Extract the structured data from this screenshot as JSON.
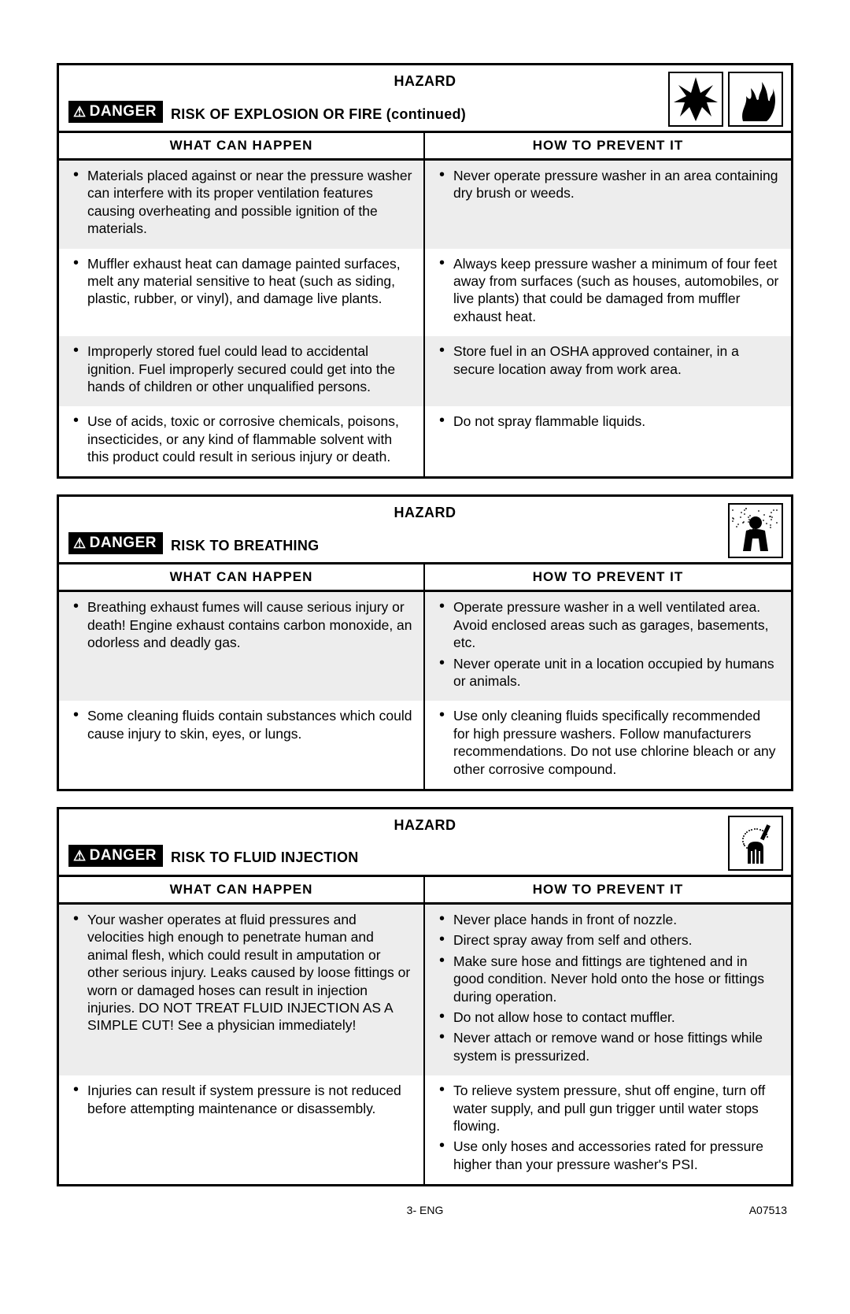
{
  "labels": {
    "hazard": "HAZARD",
    "danger": "DANGER",
    "what_can_happen": "WHAT CAN HAPPEN",
    "how_to_prevent": "HOW TO PREVENT IT"
  },
  "colors": {
    "border": "#000000",
    "shade": "#ededed",
    "bg": "#ffffff",
    "danger_bg": "#000000",
    "danger_fg": "#ffffff"
  },
  "footer": {
    "page": "3- ENG",
    "doc": "A07513"
  },
  "sections": [
    {
      "title": "RISK OF EXPLOSION OR FIRE (continued)",
      "icons": [
        "explosion",
        "fire"
      ],
      "rows": [
        {
          "shade": true,
          "left": [
            "Materials placed against or near the pressure washer can interfere with its proper ventilation features causing overheating and possible ignition of the materials."
          ],
          "right": [
            "Never operate pressure washer in an area containing dry brush or weeds."
          ]
        },
        {
          "shade": false,
          "left": [
            "Muffler exhaust heat can damage painted surfaces, melt any material sensitive to heat (such as siding, plastic, rubber, or vinyl), and damage live plants."
          ],
          "right": [
            "Always keep pressure washer a minimum of four feet away from surfaces (such as houses, automobiles, or live plants) that could be damaged from muffler exhaust heat."
          ]
        },
        {
          "shade": true,
          "left": [
            "Improperly stored fuel could lead to accidental ignition. Fuel improperly secured could get into the hands of children or other unqualified persons."
          ],
          "right": [
            "Store fuel in an OSHA approved container, in a secure location away from work area."
          ]
        },
        {
          "shade": false,
          "left": [
            "Use of acids, toxic or corrosive chemicals, poisons, insecticides, or any kind of flammable solvent with this product could result in serious injury or death."
          ],
          "right": [
            "Do not spray flammable liquids."
          ]
        }
      ]
    },
    {
      "title": "RISK TO BREATHING",
      "icons": [
        "breathing"
      ],
      "rows": [
        {
          "shade": true,
          "left": [
            "Breathing exhaust fumes will cause serious injury or death! Engine exhaust contains carbon monoxide, an odorless and deadly gas."
          ],
          "right": [
            "Operate pressure washer in a well ventilated area. Avoid enclosed areas such as garages, basements, etc.",
            "Never operate unit in a location occupied by humans or animals."
          ]
        },
        {
          "shade": false,
          "left": [
            "Some cleaning fluids contain substances which could cause injury to skin, eyes, or lungs."
          ],
          "right": [
            "Use only cleaning fluids specifically recommended for high pressure washers. Follow manufacturers recommendations. Do not use chlorine bleach or any other corrosive compound."
          ]
        }
      ]
    },
    {
      "title": "RISK TO FLUID INJECTION",
      "icons": [
        "injection"
      ],
      "rows": [
        {
          "shade": true,
          "left": [
            "Your washer operates at fluid pressures and velocities high enough to penetrate human and animal flesh, which could result in amputation or other serious injury. Leaks caused by loose fittings or worn or damaged hoses can result in injection injuries. DO NOT TREAT FLUID INJECTION AS A SIMPLE CUT! See a physician immediately!"
          ],
          "right": [
            "Never place hands in front of nozzle.",
            "Direct spray away from self and others.",
            "Make sure hose and fittings are tightened and in good condition. Never hold onto the hose or fittings during operation.",
            "Do not allow hose to contact muffler.",
            "Never attach or remove wand or hose fittings while system is pressurized."
          ]
        },
        {
          "shade": false,
          "left": [
            "Injuries can result if system pressure is not reduced before attempting maintenance or disassembly."
          ],
          "right": [
            "To relieve system pressure, shut off engine, turn off water supply, and pull gun trigger until water stops flowing.",
            "Use only hoses and accessories rated for pressure higher than your pressure washer's PSI."
          ]
        }
      ]
    }
  ]
}
